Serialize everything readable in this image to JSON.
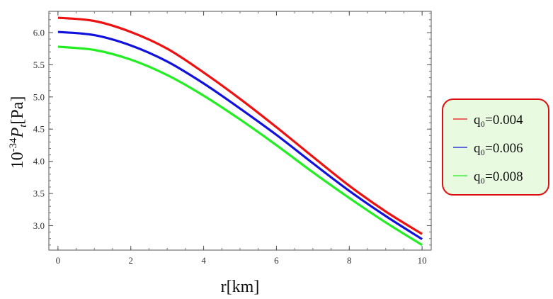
{
  "chart_data": {
    "type": "line",
    "xlabel": "r[km]",
    "ylabel_prefix": "10",
    "ylabel_exponent": "-34",
    "ylabel_symbol": "P",
    "ylabel_subscript": "t",
    "ylabel_unit": "[Pa]",
    "xlim": [
      -0.25,
      10.25
    ],
    "ylim": [
      2.62,
      6.33
    ],
    "x_ticks": [
      0,
      2,
      4,
      6,
      8,
      10
    ],
    "y_ticks": [
      3.0,
      3.5,
      4.0,
      4.5,
      5.0,
      5.5,
      6.0
    ],
    "x_minor_step": 0.5,
    "y_minor_step": 0.1,
    "grid": false,
    "legend_placement": "right",
    "x": [
      0,
      1,
      2,
      3,
      4,
      5,
      6,
      7,
      8,
      9,
      10
    ],
    "series": [
      {
        "name": "q₀=0.004",
        "color": "#ee1111",
        "values": [
          6.23,
          6.18,
          6.01,
          5.75,
          5.38,
          4.97,
          4.53,
          4.07,
          3.62,
          3.22,
          2.87
        ]
      },
      {
        "name": "q₀=0.006",
        "color": "#1111dd",
        "values": [
          6.01,
          5.96,
          5.8,
          5.55,
          5.21,
          4.82,
          4.41,
          3.97,
          3.54,
          3.15,
          2.79
        ]
      },
      {
        "name": "q₀=0.008",
        "color": "#22ee22",
        "values": [
          5.78,
          5.73,
          5.58,
          5.34,
          5.02,
          4.65,
          4.25,
          3.83,
          3.43,
          3.05,
          2.7
        ]
      }
    ]
  },
  "legend": {
    "border_color": "#dd1111",
    "background": "#e8fbe0"
  }
}
